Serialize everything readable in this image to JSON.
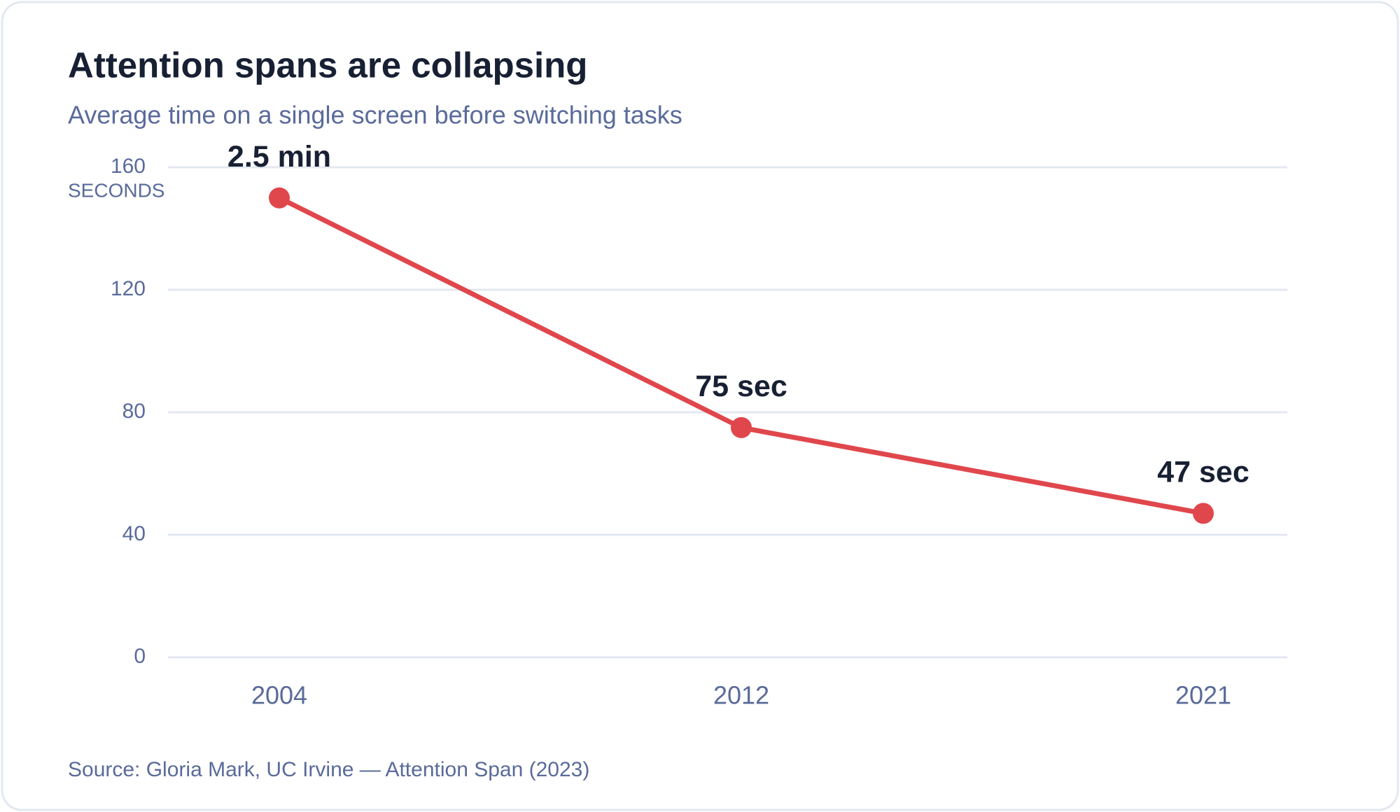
{
  "chart_data": {
    "type": "line",
    "title": "Attention spans are collapsing",
    "subtitle": "Average time on a single screen before switching tasks",
    "y_label": "SECONDS",
    "source": "Source: Gloria Mark, UC Irvine — Attention Span (2023)",
    "categories": [
      "2004",
      "2012",
      "2021"
    ],
    "series": [
      {
        "name": "Attention span",
        "color": "#e0474c",
        "values": [
          150,
          75,
          47
        ],
        "value_labels": [
          "2.5 min",
          "75 sec",
          "47 sec"
        ]
      }
    ],
    "ylim": [
      0,
      160
    ],
    "yticks": [
      0,
      40,
      80,
      120,
      160
    ],
    "grid": true
  }
}
